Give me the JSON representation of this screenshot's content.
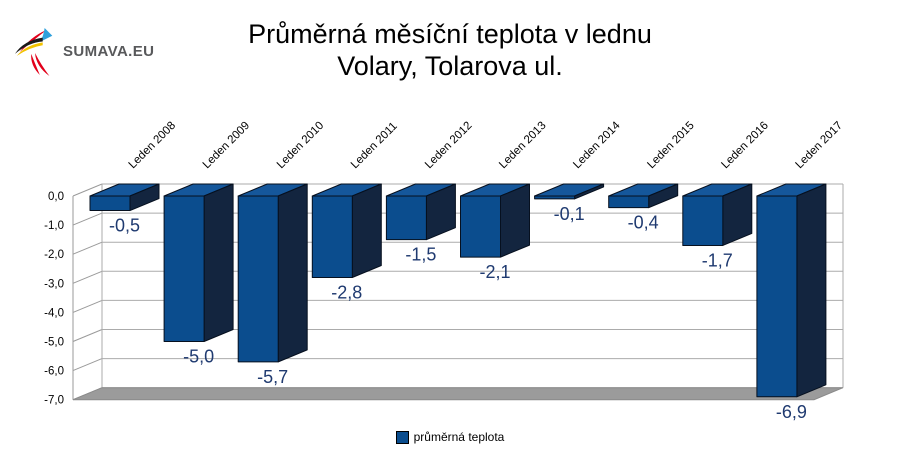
{
  "logo": {
    "text": "SUMAVA.EU"
  },
  "title": {
    "line1": "Průměrná měsíční teplota v lednu",
    "line2": "Volary, Tolarova ul."
  },
  "chart_data": {
    "type": "bar",
    "projection": "3d",
    "title": "Průměrná měsíční teplota v lednu",
    "subtitle": "Volary, Tolarova ul.",
    "categories": [
      "Leden 2008",
      "Leden 2009",
      "Leden 2010",
      "Leden 2011",
      "Leden 2012",
      "Leden 2013",
      "Leden 2014",
      "Leden 2015",
      "Leden 2016",
      "Leden 2017"
    ],
    "values": [
      -0.5,
      -5.0,
      -5.7,
      -2.8,
      -1.5,
      -2.1,
      -0.1,
      -0.4,
      -1.7,
      -6.9
    ],
    "value_labels": [
      "-0,5",
      "-5,0",
      "-5,7",
      "-2,8",
      "-1,5",
      "-2,1",
      "-0,1",
      "-0,4",
      "-1,7",
      "-6,9"
    ],
    "ytick_labels": [
      "0,0",
      "-1,0",
      "-2,0",
      "-3,0",
      "-4,0",
      "-5,0",
      "-6,0",
      "-7,0"
    ],
    "ylim": [
      -7,
      0
    ],
    "grid": true,
    "legend": "průměrná teplota",
    "legend_position": "bottom",
    "colors": {
      "bar_front": "#0B4D8E",
      "bar_top": "#15579B",
      "bar_side": "#13253F",
      "bar_stroke": "#06101F",
      "value_label": "#1F3A70",
      "gridline": "#ABABAB",
      "axis": "#9A9A9A",
      "floor": "#9B9B9B",
      "floor_edge": "#8A8A8A",
      "tick_label": "#000000"
    }
  }
}
